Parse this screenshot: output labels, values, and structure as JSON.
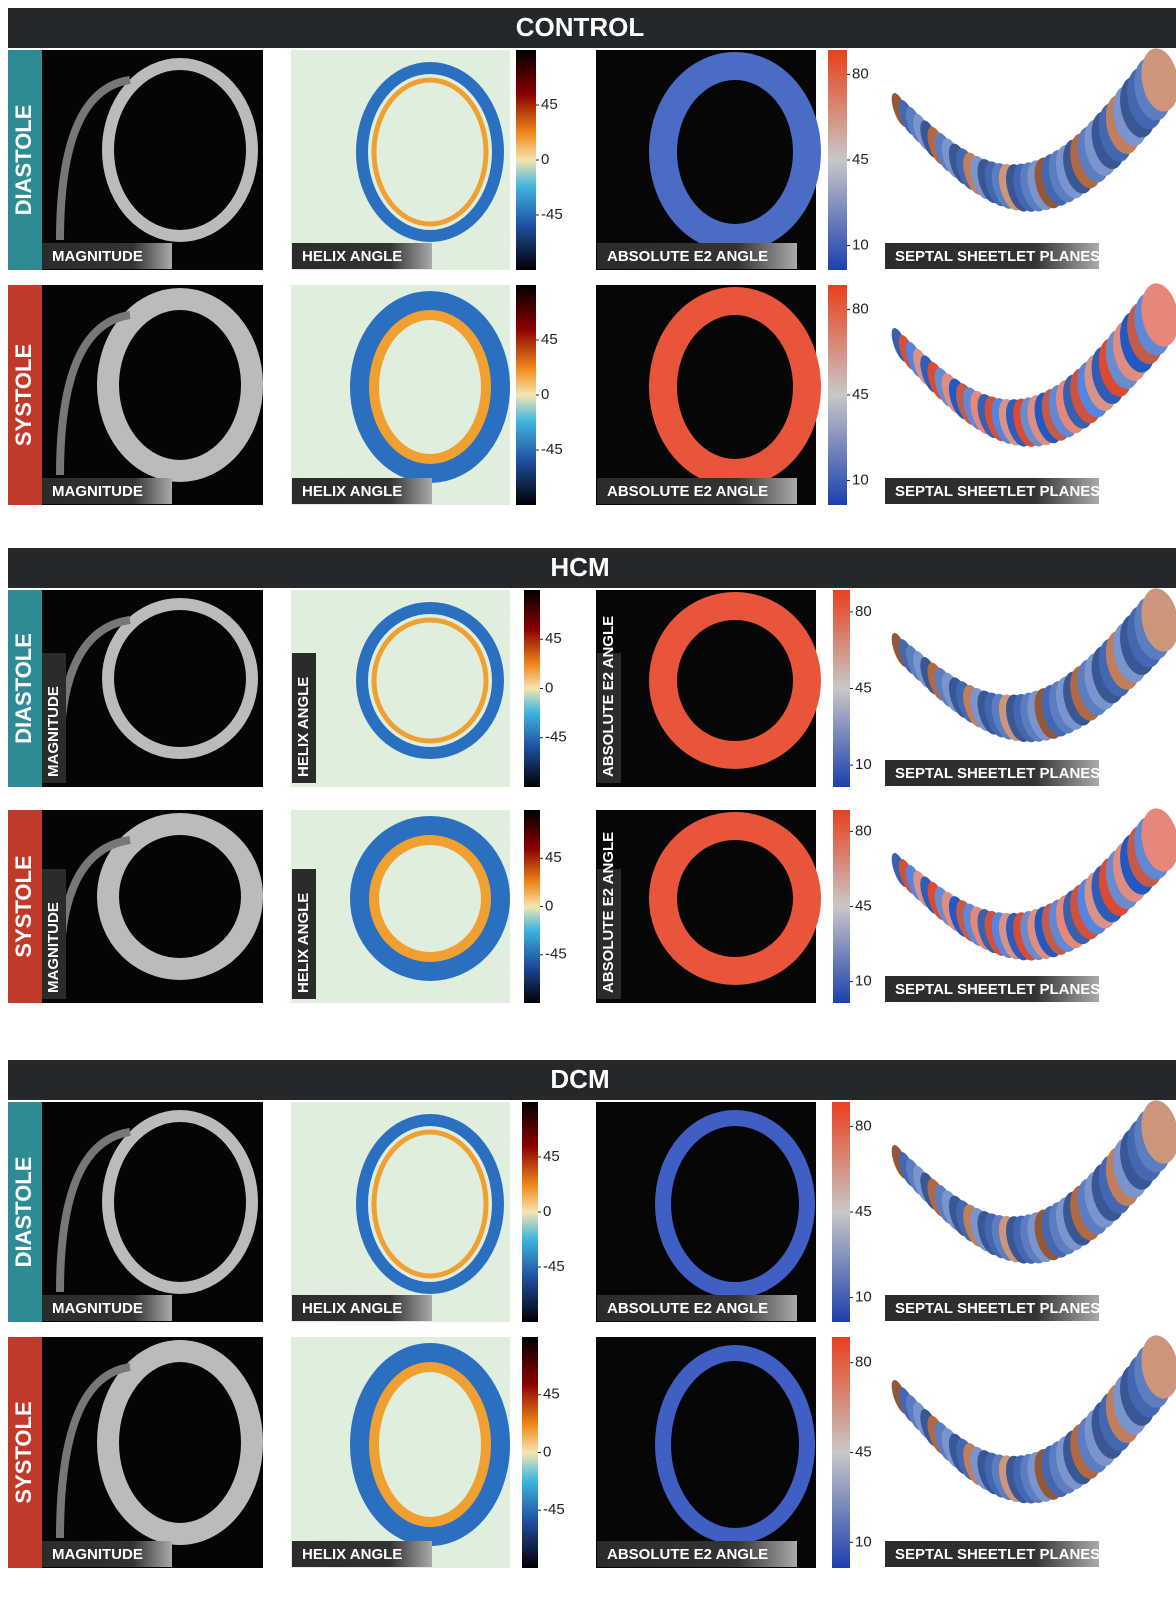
{
  "groups": [
    {
      "title": "CONTROL",
      "rows": [
        {
          "label": "DIASTOLE",
          "panels": [
            "MAGNITUDE",
            "HELIX ANGLE",
            "ABSOLUTE E2 ANGLE",
            "SEPTAL SHEETLET PLANES"
          ]
        },
        {
          "label": "SYSTOLE",
          "panels": [
            "MAGNITUDE",
            "HELIX ANGLE",
            "ABSOLUTE E2 ANGLE",
            "SEPTAL SHEETLET PLANES"
          ]
        }
      ]
    },
    {
      "title": "HCM",
      "rows": [
        {
          "label": "DIASTOLE",
          "panels": [
            "MAGNITUDE",
            "HELIX ANGLE",
            "ABSOLUTE E2 ANGLE",
            "SEPTAL SHEETLET PLANES"
          ]
        },
        {
          "label": "SYSTOLE",
          "panels": [
            "MAGNITUDE",
            "HELIX ANGLE",
            "ABSOLUTE E2 ANGLE",
            "SEPTAL SHEETLET PLANES"
          ]
        }
      ]
    },
    {
      "title": "DCM",
      "rows": [
        {
          "label": "DIASTOLE",
          "panels": [
            "MAGNITUDE",
            "HELIX ANGLE",
            "ABSOLUTE E2 ANGLE",
            "SEPTAL SHEETLET PLANES"
          ]
        },
        {
          "label": "SYSTOLE",
          "panels": [
            "MAGNITUDE",
            "HELIX ANGLE",
            "ABSOLUTE E2 ANGLE",
            "SEPTAL SHEETLET PLANES"
          ]
        }
      ]
    }
  ],
  "helix_colorbar": {
    "lim": [
      -90,
      90
    ],
    "ticks": [
      45,
      0,
      -45
    ]
  },
  "e2_colorbar": {
    "lim": [
      0,
      90
    ],
    "ticks": [
      80,
      45,
      10
    ]
  }
}
